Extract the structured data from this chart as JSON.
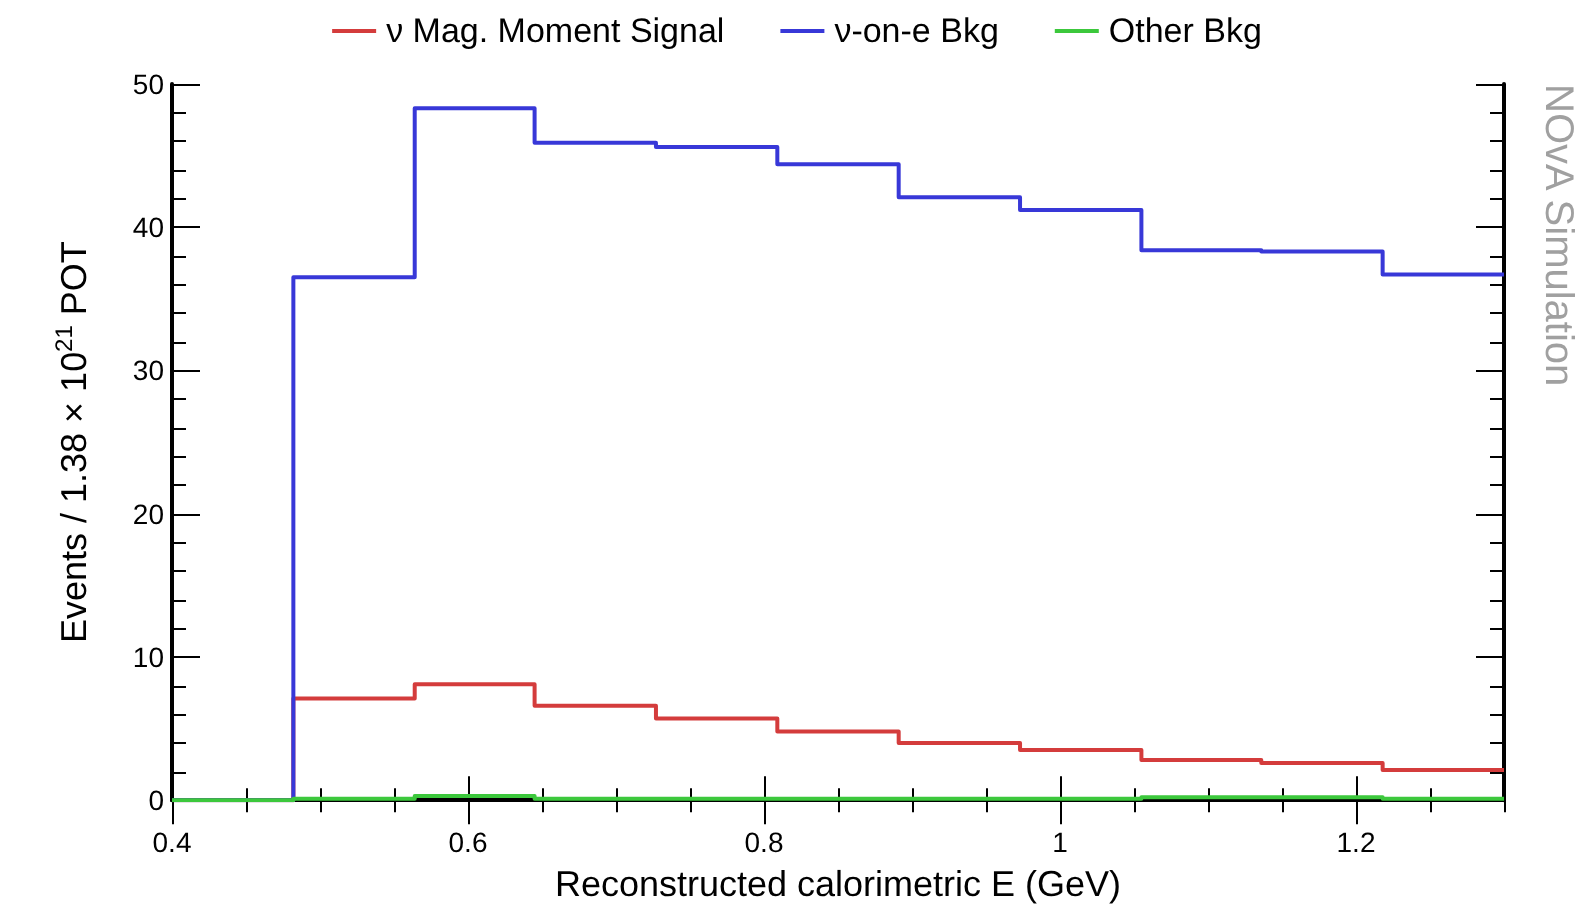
{
  "chart_data": {
    "type": "histogram",
    "xlabel": "Reconstructed calorimetric E (GeV)",
    "ylabel": "Events / 1.38 × 10$^{21}$ POT",
    "annotations": [
      "NOvA Simulation"
    ],
    "bins": [
      0.4,
      0.482,
      0.564,
      0.645,
      0.727,
      0.809,
      0.891,
      0.973,
      1.055,
      1.136,
      1.218,
      1.3
    ],
    "series": [
      {
        "name": "ν Mag. Moment Signal",
        "color": "#d43c3c",
        "values": [
          0,
          7.1,
          8.1,
          6.6,
          5.7,
          4.8,
          4.0,
          3.5,
          2.8,
          2.6,
          2.1
        ]
      },
      {
        "name": "ν-on-e Bkg",
        "color": "#3838d8",
        "values": [
          0,
          36.5,
          48.3,
          45.9,
          45.6,
          44.4,
          42.1,
          41.2,
          38.4,
          38.3,
          36.7
        ]
      },
      {
        "name": "Other Bkg",
        "color": "#3cc83c",
        "values": [
          0,
          0.1,
          0.3,
          0.1,
          0.1,
          0.1,
          0.1,
          0.1,
          0.2,
          0.2,
          0.1
        ]
      }
    ],
    "xlim": [
      0.4,
      1.3
    ],
    "xticks": [
      0.4,
      0.6,
      0.8,
      1,
      1.2
    ],
    "ylim": [
      0,
      50
    ],
    "yticks": [
      0,
      10,
      20,
      30,
      40,
      50
    ],
    "legend": "top",
    "grid": false,
    "line_style": "solid",
    "marker": "none"
  }
}
